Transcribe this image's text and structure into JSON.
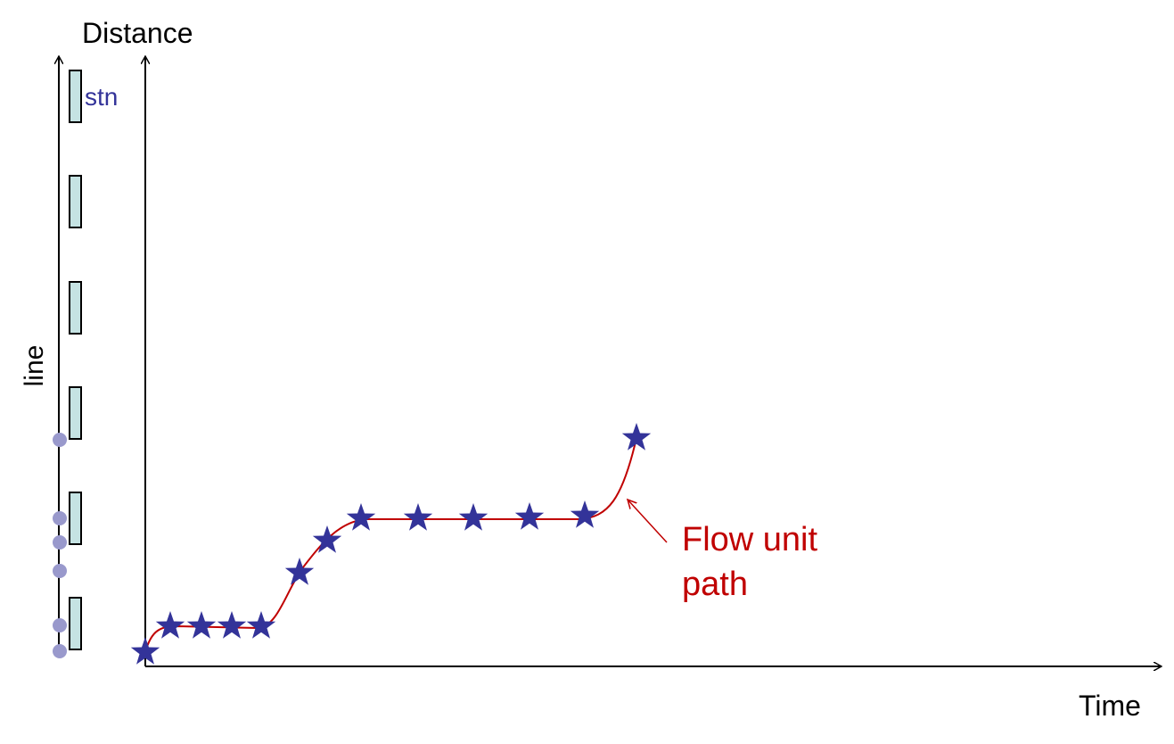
{
  "y_axis_label": "Distance",
  "x_axis_label": "Time",
  "line_label": "line",
  "station_label": "stn",
  "annotation": {
    "lines": [
      "Flow unit",
      "path"
    ]
  }
}
